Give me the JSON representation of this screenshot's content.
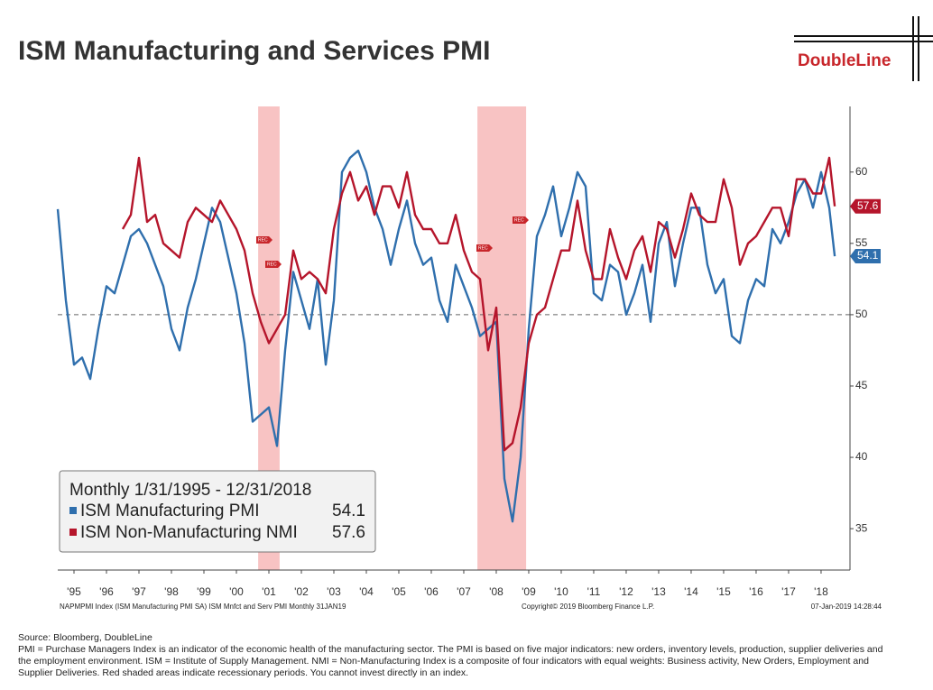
{
  "chart_data": {
    "type": "line",
    "title": "ISM Manufacturing and Services PMI",
    "logo": "DoubleLine",
    "legend_title": "Monthly 1/31/1995 - 12/31/2018",
    "rec_label": "REC",
    "x": [
      1995,
      1995.25,
      1995.5,
      1995.75,
      1996,
      1996.25,
      1996.5,
      1996.75,
      1997,
      1997.25,
      1997.5,
      1997.75,
      1998,
      1998.25,
      1998.5,
      1998.75,
      1999,
      1999.25,
      1999.5,
      1999.75,
      2000,
      2000.25,
      2000.5,
      2000.75,
      2001,
      2001.25,
      2001.5,
      2001.75,
      2002,
      2002.25,
      2002.5,
      2002.75,
      2003,
      2003.25,
      2003.5,
      2003.75,
      2004,
      2004.25,
      2004.5,
      2004.75,
      2005,
      2005.25,
      2005.5,
      2005.75,
      2006,
      2006.25,
      2006.5,
      2006.75,
      2007,
      2007.25,
      2007.5,
      2007.75,
      2008,
      2008.25,
      2008.5,
      2008.75,
      2009,
      2009.25,
      2009.5,
      2009.75,
      2010,
      2010.25,
      2010.5,
      2010.75,
      2011,
      2011.25,
      2011.5,
      2011.75,
      2012,
      2012.25,
      2012.5,
      2012.75,
      2013,
      2013.25,
      2013.5,
      2013.75,
      2014,
      2014.25,
      2014.5,
      2014.75,
      2015,
      2015.25,
      2015.5,
      2015.75,
      2016,
      2016.25,
      2016.5,
      2016.75,
      2017,
      2017.25,
      2017.5,
      2017.75,
      2018,
      2018.25,
      2018.5,
      2018.75,
      2018.92
    ],
    "series": [
      {
        "name": "ISM Manufacturing PMI",
        "color": "#2f6fad",
        "values": [
          57.4,
          51.0,
          46.5,
          47.0,
          45.5,
          49.0,
          52.0,
          51.5,
          53.5,
          55.5,
          56.0,
          55.0,
          53.5,
          52.0,
          49.0,
          47.5,
          50.5,
          52.5,
          55.0,
          57.5,
          56.5,
          54.0,
          51.5,
          48.0,
          42.5,
          43.0,
          43.5,
          40.8,
          47.5,
          53.0,
          51.0,
          49.0,
          52.5,
          46.5,
          51.0,
          60.0,
          61.0,
          61.5,
          60.0,
          57.5,
          56.0,
          53.5,
          56.0,
          58.0,
          55.0,
          53.5,
          54.0,
          51.0,
          49.5,
          53.5,
          52.0,
          50.5,
          48.5,
          49.0,
          49.5,
          38.5,
          35.5,
          40.0,
          49.0,
          55.5,
          57.0,
          59.0,
          55.5,
          57.5,
          60.0,
          59.0,
          51.5,
          51.0,
          53.5,
          53.0,
          50.0,
          51.5,
          53.5,
          49.5,
          55.0,
          56.5,
          52.0,
          55.0,
          57.5,
          57.5,
          53.5,
          51.5,
          52.5,
          48.5,
          48.0,
          51.0,
          52.5,
          52.0,
          56.0,
          55.0,
          56.5,
          58.5,
          59.5,
          57.5,
          60.0,
          57.5,
          54.1
        ]
      },
      {
        "name": "ISM Non-Manufacturing NMI",
        "color": "#b5152b",
        "values": [
          null,
          null,
          null,
          null,
          null,
          null,
          null,
          null,
          56.0,
          57.0,
          61.0,
          56.5,
          57.0,
          55.0,
          54.5,
          54.0,
          56.5,
          57.5,
          57.0,
          56.5,
          58.0,
          57.0,
          56.0,
          54.5,
          51.5,
          49.5,
          48.0,
          49.0,
          50.0,
          54.5,
          52.5,
          53.0,
          52.5,
          51.5,
          56.0,
          58.5,
          60.0,
          58.0,
          59.0,
          57.0,
          59.0,
          59.0,
          57.5,
          60.0,
          57.0,
          56.0,
          56.0,
          55.0,
          55.0,
          57.0,
          54.5,
          53.0,
          52.5,
          47.5,
          50.5,
          40.5,
          41.0,
          43.5,
          48.0,
          50.0,
          50.5,
          52.5,
          54.5,
          54.5,
          58.0,
          54.5,
          52.5,
          52.5,
          56.0,
          54.0,
          52.5,
          54.5,
          55.5,
          53.0,
          56.5,
          56.0,
          54.0,
          56.0,
          58.5,
          57.0,
          56.5,
          56.5,
          59.5,
          57.5,
          53.5,
          55.0,
          55.5,
          56.5,
          57.5,
          57.5,
          55.5,
          59.5,
          59.5,
          58.5,
          58.5,
          61.0,
          57.6
        ]
      }
    ],
    "recessions": [
      [
        2001.17,
        2001.83
      ],
      [
        2007.92,
        2009.42
      ]
    ],
    "reference_line": 50,
    "xlim": [
      1995,
      2019.39
    ],
    "xticks": [
      {
        "value": 1995.5,
        "label": "'95"
      },
      {
        "value": 1996.5,
        "label": "'96"
      },
      {
        "value": 1997.5,
        "label": "'97"
      },
      {
        "value": 1998.5,
        "label": "'98"
      },
      {
        "value": 1999.5,
        "label": "'99"
      },
      {
        "value": 2000.5,
        "label": "'00"
      },
      {
        "value": 2001.5,
        "label": "'01"
      },
      {
        "value": 2002.5,
        "label": "'02"
      },
      {
        "value": 2003.5,
        "label": "'03"
      },
      {
        "value": 2004.5,
        "label": "'04"
      },
      {
        "value": 2005.5,
        "label": "'05"
      },
      {
        "value": 2006.5,
        "label": "'06"
      },
      {
        "value": 2007.5,
        "label": "'07"
      },
      {
        "value": 2008.5,
        "label": "'08"
      },
      {
        "value": 2009.5,
        "label": "'09"
      },
      {
        "value": 2010.5,
        "label": "'10"
      },
      {
        "value": 2011.5,
        "label": "'11"
      },
      {
        "value": 2012.5,
        "label": "'12"
      },
      {
        "value": 2013.5,
        "label": "'13"
      },
      {
        "value": 2014.5,
        "label": "'14"
      },
      {
        "value": 2015.5,
        "label": "'15"
      },
      {
        "value": 2016.5,
        "label": "'16"
      },
      {
        "value": 2017.5,
        "label": "'17"
      },
      {
        "value": 2018.5,
        "label": "'18"
      }
    ],
    "ylim": [
      32.1,
      64.6
    ],
    "yticks": [
      35,
      40,
      45,
      50,
      55,
      60
    ],
    "footer_left": "NAPMPMI Index (ISM Manufacturing PMI SA) ISM Mnfct and Serv PMI  Monthly 31JAN19",
    "footer_center": "Copyright© 2019 Bloomberg Finance L.P.",
    "footer_right": "07-Jan-2019 14:28:44",
    "source": "Source: Bloomberg, DoubleLine",
    "note": "PMI = Purchase Managers Index is an indicator of the economic health of the manufacturing sector. The PMI is based on five major indicators: new orders, inventory levels, production, supplier deliveries and the employment environment. ISM = Institute of Supply Management. NMI = Non-Manufacturing Index is a composite of four indicators with equal weights: Business activity, New Orders, Employment and Supplier Deliveries. Red shaded areas indicate recessionary periods. You cannot invest directly in an index."
  }
}
